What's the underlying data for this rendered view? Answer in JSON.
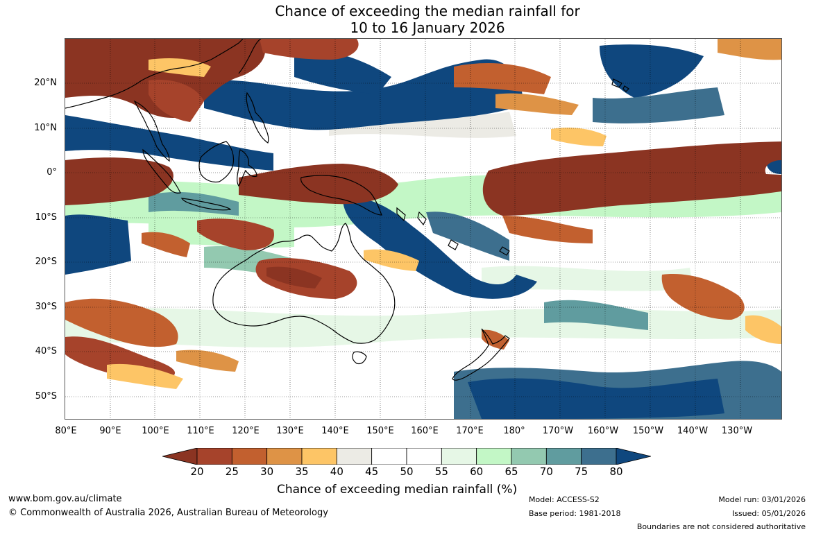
{
  "title": {
    "line1": "Chance of exceeding the median rainfall for",
    "line2": "10 to 16 January 2026"
  },
  "map": {
    "latitude_labels": [
      "20°N",
      "10°N",
      "0°",
      "10°S",
      "20°S",
      "30°S",
      "40°S",
      "50°S"
    ],
    "longitude_labels": [
      "80°E",
      "90°E",
      "100°E",
      "110°E",
      "120°E",
      "130°E",
      "140°E",
      "150°E",
      "160°E",
      "170°E",
      "180°",
      "170°W",
      "160°W",
      "150°W",
      "140°W",
      "130°W"
    ],
    "extent": {
      "lon_min": 80,
      "lon_max": 239,
      "lat_min": -55,
      "lat_max": 30
    }
  },
  "colorbar": {
    "title": "Chance of exceeding median rainfall (%)",
    "ticks": [
      "20",
      "25",
      "30",
      "35",
      "40",
      "45",
      "50",
      "55",
      "60",
      "65",
      "70",
      "75",
      "80"
    ],
    "colors": [
      "#8b3422",
      "#a6432b",
      "#c2602f",
      "#de9346",
      "#fdc566",
      "#ecebe5",
      "#ffffff",
      "#ffffff",
      "#e6f7e6",
      "#c3f7c6",
      "#93c9b0",
      "#609c9f",
      "#3d6f8e",
      "#0f477e"
    ]
  },
  "footer": {
    "website": "www.bom.gov.au/climate",
    "copyright": "© Commonwealth of Australia 2026, Australian Bureau of Meteorology",
    "model": "Model: ACCESS-S2",
    "base_period": "Base period: 1981-2018",
    "model_run": "Model run: 03/01/2026",
    "issued": "Issued: 05/01/2026",
    "boundaries": "Boundaries are not considered authoritative"
  }
}
